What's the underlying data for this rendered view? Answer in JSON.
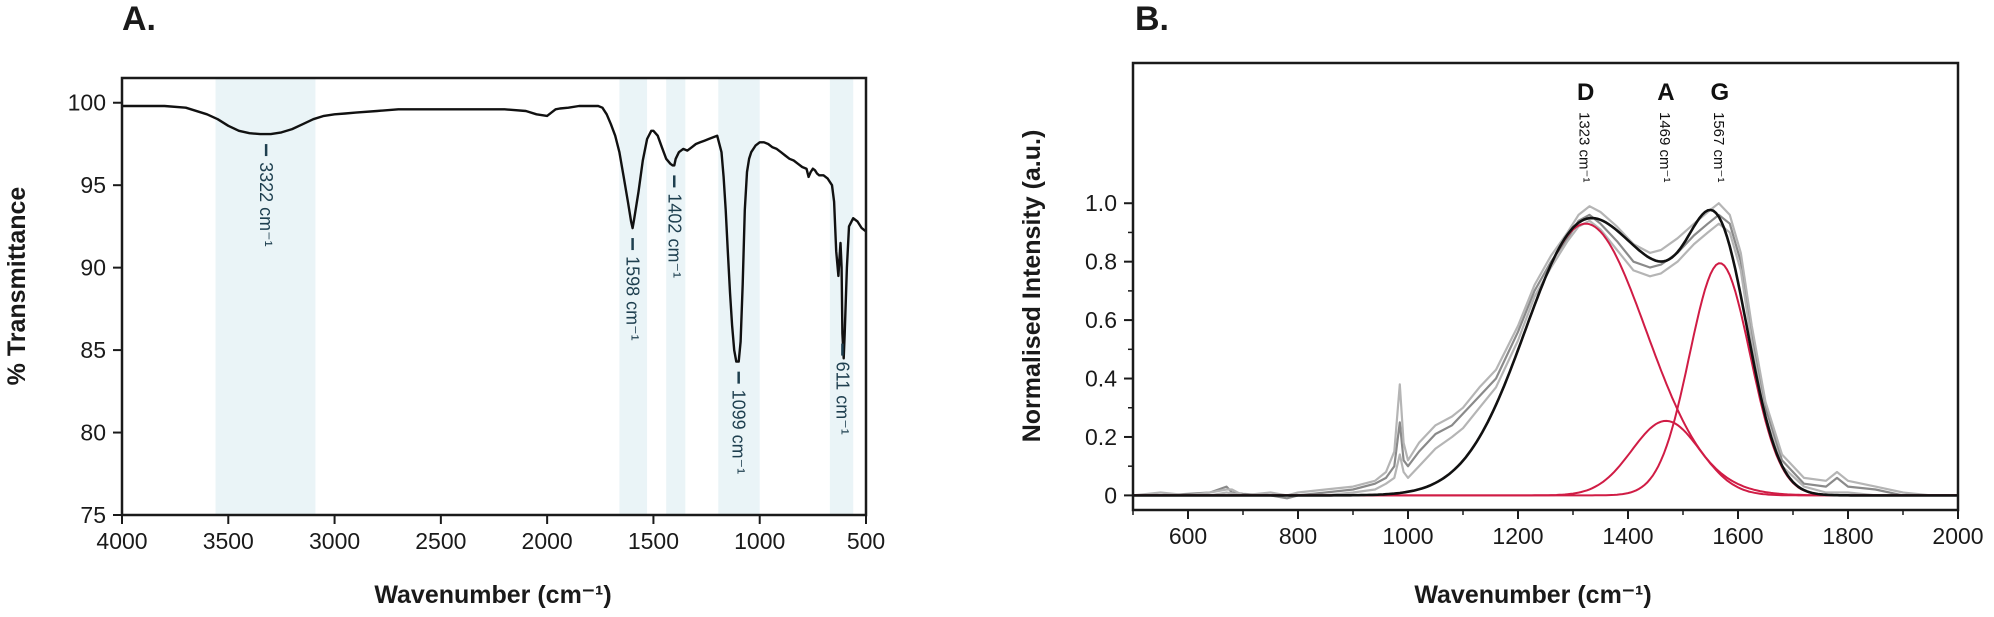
{
  "chart_data": [
    {
      "panel_label": "A.",
      "type": "line",
      "xlabel": "Wavenumber (cm⁻¹)",
      "ylabel": "% Transmittance",
      "xlim": [
        4000,
        500
      ],
      "ylim": [
        75,
        101.5
      ],
      "x_reversed": true,
      "xticks": [
        4000,
        3500,
        3000,
        2500,
        2000,
        1500,
        1000,
        500
      ],
      "yticks": [
        75,
        80,
        85,
        90,
        95,
        100
      ],
      "highlight_color": "#eaf4f7",
      "line_color": "#111111",
      "highlight_regions": [
        [
          3560,
          3090
        ],
        [
          1660,
          1530
        ],
        [
          1440,
          1350
        ],
        [
          1195,
          1000
        ],
        [
          670,
          560
        ]
      ],
      "series": [
        {
          "x": [
            4000,
            3900,
            3800,
            3700,
            3600,
            3550,
            3500,
            3450,
            3400,
            3350,
            3322,
            3300,
            3250,
            3200,
            3150,
            3100,
            3050,
            3000,
            2950,
            2900,
            2800,
            2700,
            2600,
            2500,
            2400,
            2300,
            2200,
            2100,
            2050,
            2000,
            1980,
            1960,
            1940,
            1900,
            1850,
            1800,
            1760,
            1740,
            1720,
            1700,
            1680,
            1660,
            1640,
            1620,
            1605,
            1598,
            1590,
            1570,
            1550,
            1530,
            1510,
            1500,
            1480,
            1460,
            1440,
            1420,
            1410,
            1402,
            1395,
            1380,
            1360,
            1340,
            1320,
            1300,
            1280,
            1260,
            1240,
            1220,
            1200,
            1180,
            1170,
            1160,
            1150,
            1140,
            1130,
            1120,
            1110,
            1099,
            1090,
            1080,
            1070,
            1060,
            1050,
            1040,
            1020,
            1000,
            980,
            960,
            940,
            920,
            900,
            880,
            860,
            840,
            820,
            800,
            780,
            770,
            760,
            750,
            740,
            730,
            720,
            700,
            680,
            660,
            650,
            640,
            630,
            625,
            620,
            615,
            611,
            605,
            600,
            590,
            580,
            560,
            540,
            520,
            500
          ],
          "y": [
            99.8,
            99.8,
            99.8,
            99.7,
            99.3,
            99.0,
            98.6,
            98.3,
            98.15,
            98.1,
            98.1,
            98.1,
            98.2,
            98.4,
            98.7,
            99.0,
            99.2,
            99.3,
            99.35,
            99.4,
            99.5,
            99.6,
            99.6,
            99.6,
            99.6,
            99.6,
            99.6,
            99.5,
            99.3,
            99.2,
            99.4,
            99.6,
            99.65,
            99.7,
            99.8,
            99.8,
            99.8,
            99.7,
            99.3,
            98.7,
            98.0,
            97.0,
            95.5,
            94.0,
            92.8,
            92.4,
            93.0,
            94.6,
            96.5,
            97.8,
            98.3,
            98.3,
            98.0,
            97.3,
            96.6,
            96.3,
            96.2,
            96.2,
            96.6,
            97.0,
            97.2,
            97.1,
            97.3,
            97.5,
            97.6,
            97.7,
            97.8,
            97.9,
            98.0,
            97.0,
            95.5,
            93.5,
            91.0,
            88.5,
            86.5,
            85.0,
            84.3,
            84.3,
            85.5,
            89.0,
            93.5,
            95.8,
            96.6,
            97.0,
            97.4,
            97.6,
            97.6,
            97.5,
            97.3,
            97.2,
            97.0,
            96.8,
            96.6,
            96.5,
            96.3,
            96.1,
            96.0,
            95.5,
            95.8,
            96.0,
            95.9,
            95.7,
            95.6,
            95.6,
            95.4,
            95.0,
            94.0,
            91.0,
            89.5,
            90.5,
            91.5,
            90.0,
            86.0,
            84.5,
            86.0,
            90.0,
            92.5,
            93.0,
            92.8,
            92.4,
            92.2
          ]
        }
      ],
      "annotations": [
        {
          "x": 3322,
          "text": "3322 cm⁻¹"
        },
        {
          "x": 1598,
          "text": "1598 cm⁻¹"
        },
        {
          "x": 1402,
          "text": "1402 cm⁻¹"
        },
        {
          "x": 1099,
          "text": "1099 cm⁻¹"
        },
        {
          "x": 611,
          "text": "611 cm⁻¹"
        }
      ]
    },
    {
      "panel_label": "B.",
      "type": "line",
      "xlabel": "Wavenumber (cm⁻¹)",
      "ylabel": "Normalised Intensity (a.u.)",
      "xlim": [
        500,
        2000
      ],
      "ylim": [
        -0.05,
        1.48
      ],
      "xticks": [
        600,
        800,
        1000,
        1200,
        1400,
        1600,
        1800,
        2000
      ],
      "yticks": [
        0,
        0.2,
        0.4,
        0.6,
        0.8,
        1.0
      ],
      "ytick_labels": [
        "0",
        "0.2",
        "0.4",
        "0.6",
        "0.8",
        "1.0"
      ],
      "colors": {
        "fit": "#111111",
        "components": "#d01c45",
        "raw": "#8a8a8a",
        "raw_light": "#b5b5b5"
      },
      "bands": [
        {
          "letter": "D",
          "position": 1323,
          "label": "1323 cm⁻¹",
          "amplitude": 0.93,
          "sigma": 110
        },
        {
          "letter": "A",
          "position": 1469,
          "label": "1469 cm⁻¹",
          "amplitude": 0.255,
          "sigma": 62
        },
        {
          "letter": "G",
          "position": 1567,
          "label": "1567 cm⁻¹",
          "amplitude": 0.795,
          "sigma": 55
        }
      ],
      "series": [
        {
          "name": "",
          "role": "raw",
          "x": [
            500,
            550,
            600,
            640,
            670,
            680,
            700,
            750,
            780,
            800,
            850,
            900,
            940,
            960,
            975,
            985,
            992,
            1000,
            1020,
            1050,
            1080,
            1100,
            1130,
            1160,
            1200,
            1230,
            1260,
            1290,
            1310,
            1330,
            1350,
            1380,
            1410,
            1440,
            1460,
            1490,
            1520,
            1545,
            1565,
            1585,
            1605,
            1625,
            1650,
            1680,
            1720,
            1760,
            1780,
            1800,
            1850,
            1900,
            1950,
            2000
          ],
          "y": [
            0.0,
            0.0,
            0.005,
            0.01,
            0.03,
            0.01,
            0.005,
            0.0,
            -0.01,
            0.0,
            0.01,
            0.02,
            0.04,
            0.06,
            0.1,
            0.25,
            0.12,
            0.1,
            0.15,
            0.21,
            0.24,
            0.28,
            0.34,
            0.4,
            0.56,
            0.7,
            0.8,
            0.88,
            0.94,
            0.96,
            0.93,
            0.87,
            0.8,
            0.78,
            0.79,
            0.83,
            0.89,
            0.93,
            0.96,
            0.93,
            0.8,
            0.55,
            0.3,
            0.12,
            0.04,
            0.03,
            0.06,
            0.03,
            0.02,
            0.0,
            0.0,
            0.0
          ]
        },
        {
          "name": "",
          "role": "raw_light",
          "x": [
            500,
            550,
            600,
            640,
            670,
            680,
            700,
            750,
            780,
            800,
            850,
            900,
            940,
            960,
            975,
            985,
            992,
            1000,
            1020,
            1050,
            1080,
            1100,
            1130,
            1160,
            1200,
            1230,
            1260,
            1290,
            1310,
            1330,
            1350,
            1380,
            1410,
            1440,
            1460,
            1490,
            1520,
            1545,
            1565,
            1585,
            1605,
            1625,
            1650,
            1680,
            1720,
            1760,
            1780,
            1800,
            1850,
            1900,
            1950,
            2000
          ],
          "y": [
            0.0,
            0.01,
            0.0,
            0.01,
            0.02,
            0.02,
            0.0,
            0.01,
            0.0,
            0.01,
            0.02,
            0.03,
            0.05,
            0.08,
            0.15,
            0.38,
            0.18,
            0.12,
            0.18,
            0.24,
            0.27,
            0.3,
            0.37,
            0.43,
            0.58,
            0.72,
            0.82,
            0.9,
            0.96,
            0.99,
            0.97,
            0.92,
            0.86,
            0.83,
            0.84,
            0.88,
            0.93,
            0.97,
            1.0,
            0.96,
            0.83,
            0.58,
            0.32,
            0.14,
            0.06,
            0.05,
            0.08,
            0.05,
            0.03,
            0.01,
            0.0,
            0.0
          ]
        },
        {
          "name": "",
          "role": "raw_light",
          "x": [
            500,
            550,
            600,
            640,
            670,
            700,
            750,
            800,
            850,
            900,
            940,
            960,
            975,
            985,
            992,
            1000,
            1020,
            1050,
            1080,
            1100,
            1130,
            1160,
            1200,
            1230,
            1260,
            1290,
            1310,
            1330,
            1350,
            1380,
            1410,
            1440,
            1460,
            1490,
            1520,
            1545,
            1565,
            1585,
            1605,
            1625,
            1650,
            1680,
            1720,
            1760,
            1800,
            1850,
            1900,
            1950,
            2000
          ],
          "y": [
            0.0,
            0.0,
            0.0,
            0.0,
            0.01,
            0.0,
            0.0,
            0.0,
            0.0,
            0.01,
            0.02,
            0.04,
            0.06,
            0.14,
            0.08,
            0.06,
            0.1,
            0.16,
            0.2,
            0.23,
            0.3,
            0.37,
            0.53,
            0.68,
            0.78,
            0.87,
            0.92,
            0.94,
            0.91,
            0.84,
            0.77,
            0.75,
            0.76,
            0.8,
            0.86,
            0.9,
            0.93,
            0.9,
            0.77,
            0.52,
            0.27,
            0.1,
            0.03,
            0.01,
            0.01,
            0.0,
            0.0,
            0.0,
            0.0
          ]
        }
      ]
    }
  ]
}
